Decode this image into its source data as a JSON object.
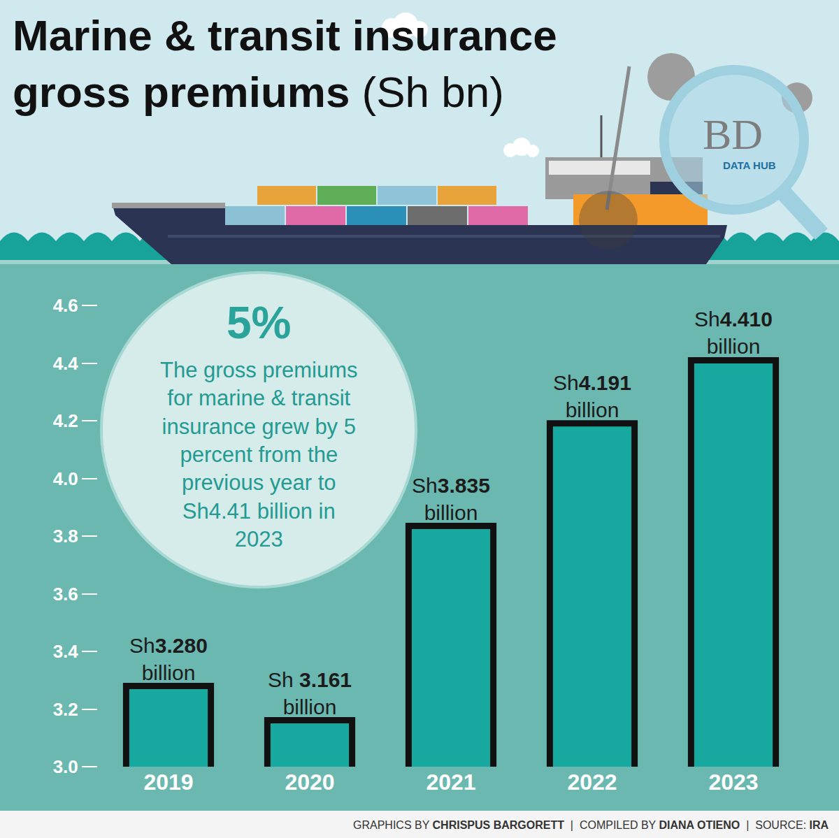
{
  "chart_data": {
    "type": "bar",
    "title": "Marine & transit insurance gross premiums (Sh bn)",
    "categories": [
      "2019",
      "2020",
      "2021",
      "2022",
      "2023"
    ],
    "values": [
      3.28,
      3.161,
      3.835,
      4.191,
      4.41
    ],
    "value_labels": [
      "Sh3.280 billion",
      "Sh 3.161 billion",
      "Sh3.835 billion",
      "Sh4.191 billion",
      "Sh4.410 billion"
    ],
    "data_labels": true,
    "color": "#17a99f",
    "ylim": [
      3.0,
      4.6
    ],
    "yticks": [
      {
        "value": 3,
        "label": "3.0"
      },
      3.2,
      3.4,
      3.6,
      3.8,
      {
        "value": 4,
        "label": "4.0"
      },
      4.2,
      4.4,
      4.6
    ],
    "grid": false,
    "annotations": [
      "5%",
      "The gross premiums for marine & transit insurance grew by 5 percent from the previous year to Sh4.41 billion in 2023",
      "BD",
      "DATA HUB",
      "GRAPHICS BY CHRISPUS BARGORETT | COMPILED BY DIANA OTIENO | SOURCE: IRA"
    ]
  }
}
